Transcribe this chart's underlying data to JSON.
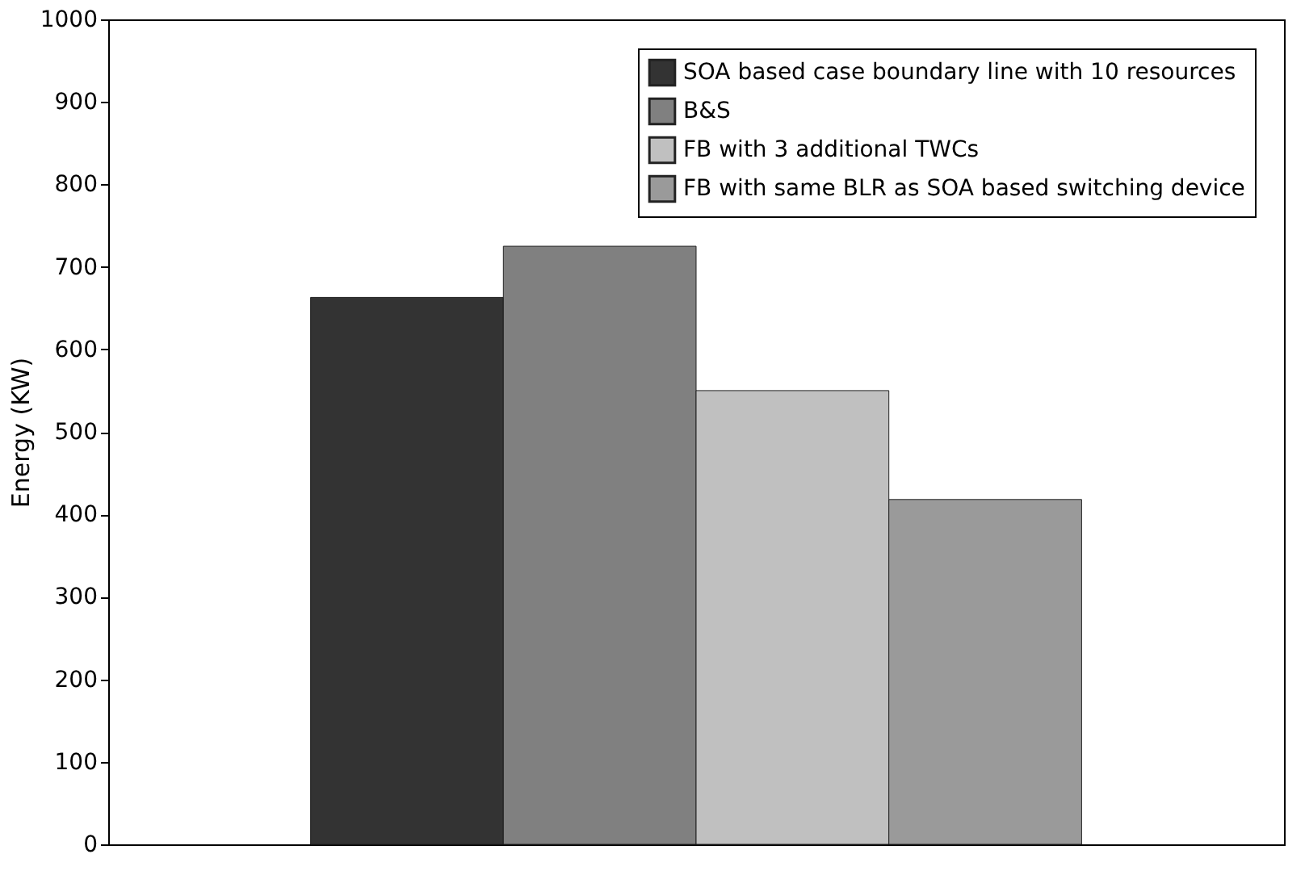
{
  "chart_data": {
    "type": "bar",
    "ylabel": "Energy (KW)",
    "categories": [
      null
    ],
    "series": [
      {
        "name": "SOA based case boundary line with 10 resources",
        "color": "#333333",
        "values": [
          663
        ]
      },
      {
        "name": "B&S",
        "color": "#808080",
        "values": [
          725
        ]
      },
      {
        "name": "FB with 3 additional TWCs",
        "color": "#c0c0c0",
        "values": [
          550
        ]
      },
      {
        "name": "FB with same BLR as SOA based switching device",
        "color": "#9a9a9a",
        "values": [
          418
        ]
      }
    ],
    "ylim": [
      0,
      1000
    ],
    "yticks": [
      0,
      100,
      200,
      300,
      400,
      500,
      600,
      700,
      800,
      900,
      1000
    ],
    "grid": false,
    "legend": "top right",
    "tick_labels": "y"
  }
}
